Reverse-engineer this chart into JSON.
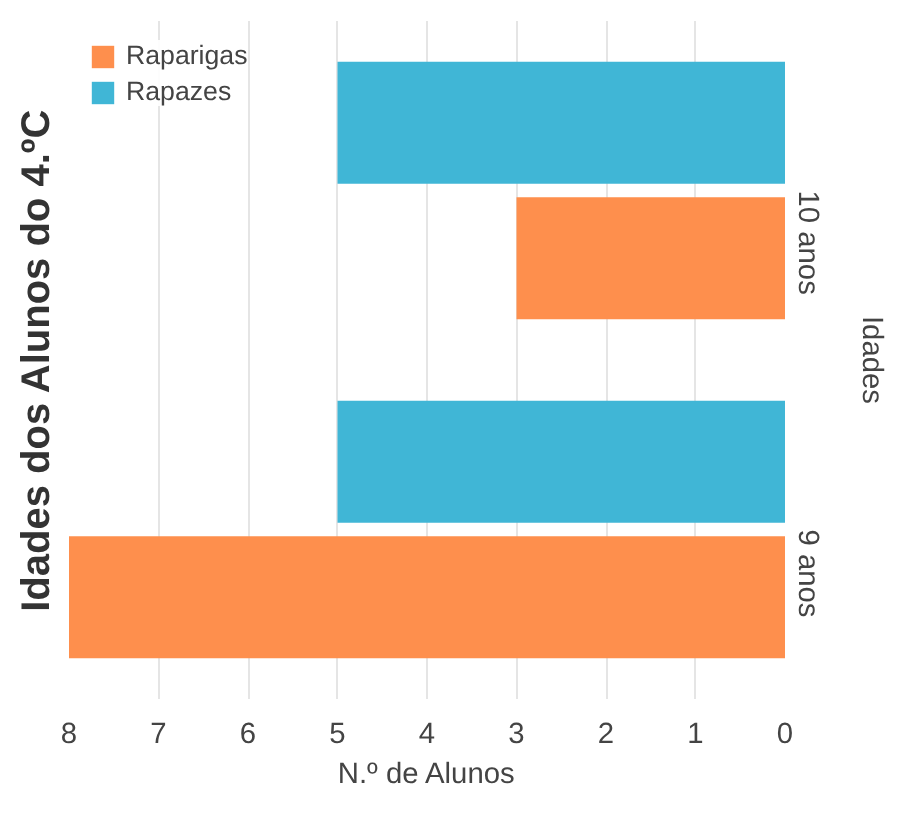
{
  "chart_data": {
    "type": "bar",
    "orientation": "horizontal",
    "title": "Idades dos Alunos do 4.ºC",
    "xlabel": "N.º de Alunos",
    "ylabel": "Idades",
    "categories": [
      "10 anos",
      "9 anos"
    ],
    "series": [
      {
        "name": "Raparigas",
        "color": "#fe8f4d",
        "values": [
          3,
          8
        ]
      },
      {
        "name": "Rapazes",
        "color": "#40b6d6",
        "values": [
          5,
          5
        ]
      }
    ],
    "xlim": [
      8,
      0
    ],
    "xticks": [
      8,
      7,
      6,
      5,
      4,
      3,
      2,
      1,
      0
    ],
    "grid": "x",
    "legend": "top left"
  }
}
